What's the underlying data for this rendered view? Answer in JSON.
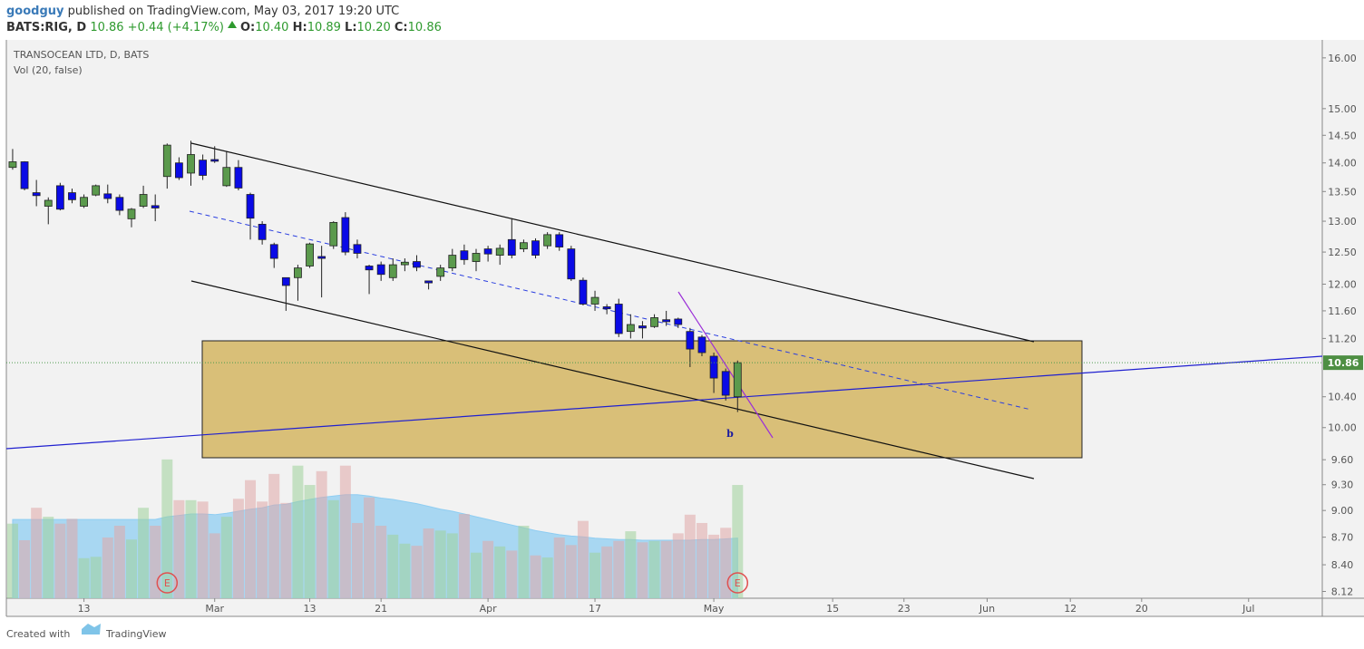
{
  "header": {
    "author": "goodguy",
    "published": "published on TradingView.com, May 03, 2017 19:20 UTC",
    "symbol": "BATS:RIG, D",
    "last": "10.86",
    "change": "+0.44 (+4.17%)",
    "ohlc": [
      {
        "label": "O:",
        "value": "10.40"
      },
      {
        "label": "H:",
        "value": "10.89"
      },
      {
        "label": "L:",
        "value": "10.20"
      },
      {
        "label": "C:",
        "value": "10.86"
      }
    ]
  },
  "chart_data": {
    "type": "candlestick",
    "title": "TRANSOCEAN LTD, D, BATS",
    "indicator": "Vol (20, false)",
    "log_scale": true,
    "grid": false,
    "up_color": "#5b9a4d",
    "down_color": "#0a0ae6",
    "volume_up_color": "#9fd19a",
    "volume_down_color": "#e0a8a8",
    "volume_ma_color": "#8fcdf2",
    "xlim": [
      -0.53,
      110.2
    ],
    "xticks": [
      {
        "value": 6,
        "label": "13"
      },
      {
        "value": 17,
        "label": "Mar"
      },
      {
        "value": 25,
        "label": "13"
      },
      {
        "value": 31,
        "label": "21"
      },
      {
        "value": 40,
        "label": "Apr"
      },
      {
        "value": 49,
        "label": "17"
      },
      {
        "value": 59,
        "label": "May"
      },
      {
        "value": 69,
        "label": "15"
      },
      {
        "value": 75,
        "label": "23"
      },
      {
        "value": 82,
        "label": "Jun"
      },
      {
        "value": 89,
        "label": "12"
      },
      {
        "value": 95,
        "label": "20"
      },
      {
        "value": 104,
        "label": "Jul"
      }
    ],
    "ylim": [
      8.05,
      16.37
    ],
    "yticks": [
      {
        "value": 8.12,
        "label": "8.12"
      },
      {
        "value": 8.4,
        "label": "8.40"
      },
      {
        "value": 8.7,
        "label": "8.70"
      },
      {
        "value": 9,
        "label": "9.00"
      },
      {
        "value": 9.3,
        "label": "9.30"
      },
      {
        "value": 9.6,
        "label": "9.60"
      },
      {
        "value": 10,
        "label": "10.00"
      },
      {
        "value": 10.4,
        "label": "10.40"
      },
      {
        "value": 11.2,
        "label": "11.20"
      },
      {
        "value": 11.6,
        "label": "11.60"
      },
      {
        "value": 12,
        "label": "12.00"
      },
      {
        "value": 12.5,
        "label": "12.50"
      },
      {
        "value": 13,
        "label": "13.00"
      },
      {
        "value": 13.5,
        "label": "13.50"
      },
      {
        "value": 14,
        "label": "14.00"
      },
      {
        "value": 14.5,
        "label": "14.50"
      },
      {
        "value": 15,
        "label": "15.00"
      },
      {
        "value": 16,
        "label": "16.00"
      }
    ],
    "last_price": {
      "value": 10.86,
      "label": "10.86"
    },
    "candles": {
      "open": [
        13.92,
        14.02,
        13.48,
        13.25,
        13.6,
        13.48,
        13.25,
        13.44,
        13.46,
        13.4,
        13.04,
        13.25,
        13.26,
        13.76,
        14.0,
        13.82,
        14.05,
        14.06,
        13.6,
        13.92,
        13.45,
        12.95,
        12.62,
        12.1,
        12.1,
        12.28,
        12.43,
        12.6,
        13.06,
        12.62,
        12.28,
        12.3,
        12.1,
        12.3,
        12.35,
        12.05,
        12.12,
        12.25,
        12.52,
        12.35,
        12.55,
        12.45,
        12.7,
        12.55,
        12.68,
        12.6,
        12.78,
        12.55,
        12.06,
        11.7,
        11.66,
        11.7,
        11.3,
        11.38,
        11.37,
        11.47,
        11.48,
        11.3,
        11.22,
        10.95,
        10.74,
        10.4
      ],
      "high": [
        14.25,
        14.03,
        13.7,
        13.4,
        13.65,
        13.55,
        13.45,
        13.62,
        13.62,
        13.45,
        13.22,
        13.6,
        13.45,
        14.35,
        14.1,
        14.4,
        14.15,
        14.3,
        14.2,
        14.05,
        13.48,
        13.0,
        12.65,
        12.1,
        12.3,
        12.65,
        12.6,
        13.0,
        13.15,
        12.7,
        12.3,
        12.35,
        12.4,
        12.4,
        12.45,
        12.05,
        12.3,
        12.55,
        12.62,
        12.55,
        12.6,
        12.62,
        13.05,
        12.7,
        12.72,
        12.82,
        12.82,
        12.6,
        12.1,
        11.9,
        11.7,
        11.78,
        11.55,
        11.45,
        11.55,
        11.6,
        11.5,
        11.35,
        11.25,
        11.0,
        10.78,
        10.89
      ],
      "low": [
        13.88,
        13.52,
        13.25,
        12.95,
        13.18,
        13.3,
        13.22,
        13.42,
        13.3,
        13.1,
        12.9,
        13.22,
        13.0,
        13.55,
        13.7,
        13.6,
        13.7,
        14.0,
        13.58,
        13.52,
        12.7,
        12.62,
        12.25,
        11.6,
        11.75,
        12.25,
        11.8,
        12.55,
        12.45,
        12.4,
        11.85,
        12.05,
        12.05,
        12.2,
        12.2,
        11.92,
        12.05,
        12.2,
        12.3,
        12.2,
        12.35,
        12.3,
        12.4,
        12.5,
        12.4,
        12.55,
        12.52,
        12.05,
        11.68,
        11.6,
        11.55,
        11.22,
        11.2,
        11.2,
        11.35,
        11.38,
        11.35,
        10.8,
        10.95,
        10.45,
        10.35,
        10.2
      ],
      "close": [
        14.02,
        13.55,
        13.43,
        13.35,
        13.2,
        13.36,
        13.4,
        13.6,
        13.38,
        13.18,
        13.2,
        13.45,
        13.22,
        14.32,
        13.74,
        14.15,
        13.78,
        14.03,
        13.92,
        13.56,
        13.05,
        12.7,
        12.4,
        11.98,
        12.25,
        12.63,
        12.4,
        12.98,
        12.5,
        12.48,
        12.22,
        12.15,
        12.3,
        12.34,
        12.26,
        12.02,
        12.25,
        12.45,
        12.38,
        12.48,
        12.47,
        12.56,
        12.45,
        12.65,
        12.45,
        12.78,
        12.58,
        12.08,
        11.7,
        11.8,
        11.63,
        11.27,
        11.4,
        11.35,
        11.5,
        11.44,
        11.4,
        11.05,
        11.0,
        10.65,
        10.42,
        10.86
      ]
    },
    "volume_lim": [
      0,
      21
    ],
    "volume": [
      10.8,
      8.4,
      13.1,
      11.8,
      10.8,
      11.5,
      5.8,
      6.0,
      8.8,
      10.5,
      8.5,
      13.1,
      10.5,
      20.1,
      14.2,
      14.2,
      14.0,
      9.4,
      11.8,
      14.4,
      17.1,
      14.0,
      18.0,
      13.8,
      19.2,
      16.4,
      18.4,
      14.2,
      19.2,
      10.9,
      14.6,
      10.5,
      9.2,
      7.9,
      7.6,
      10.1,
      9.8,
      9.4,
      12.2,
      6.6,
      8.3,
      7.5,
      6.9,
      10.5,
      6.2,
      5.9,
      8.8,
      7.7,
      11.2,
      6.6,
      7.5,
      8.3,
      9.7,
      8.1,
      8.3,
      8.3,
      9.4,
      12.1,
      10.9,
      9.2,
      10.2,
      16.4
    ],
    "volume_ma": [
      11.4,
      11.4,
      11.4,
      11.4,
      11.4,
      11.4,
      11.4,
      11.4,
      11.4,
      11.4,
      11.4,
      11.4,
      11.4,
      11.8,
      12,
      12.2,
      12.2,
      12.1,
      12.3,
      12.6,
      12.9,
      13.1,
      13.5,
      13.6,
      14,
      14.3,
      14.6,
      14.8,
      15,
      15,
      14.8,
      14.5,
      14.3,
      14,
      13.7,
      13.3,
      12.9,
      12.6,
      12.2,
      11.8,
      11.4,
      11,
      10.6,
      10.2,
      9.8,
      9.5,
      9.2,
      9,
      8.9,
      8.7,
      8.6,
      8.5,
      8.5,
      8.4,
      8.4,
      8.4,
      8.4,
      8.4,
      8.5,
      8.5,
      8.6,
      8.7
    ],
    "wave_label": "b",
    "earnings_markers": [
      {
        "x": 13,
        "label": "E"
      },
      {
        "x": 61,
        "label": "E"
      }
    ]
  },
  "footer": {
    "created_with": "Created with",
    "brand": "TradingView"
  }
}
